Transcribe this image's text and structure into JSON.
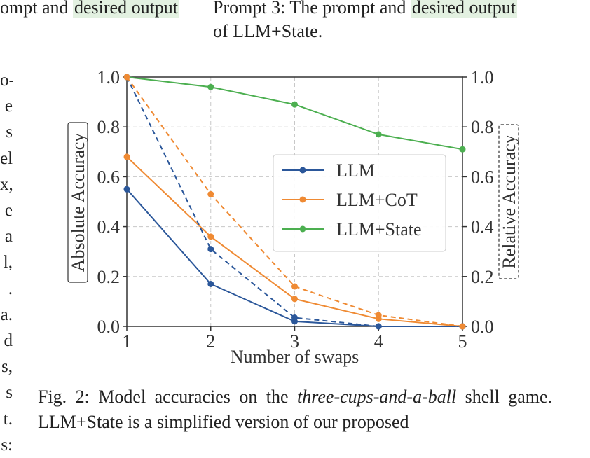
{
  "top_fragments": {
    "left_prefix": "ompt and ",
    "left_highlight": "desired output",
    "right_prefix": "Prompt 3: The prompt and ",
    "right_highlight": "desired output",
    "right_line2": "of LLM+State."
  },
  "left_column_fragments": [
    "o-",
    "e",
    "s",
    "el",
    "x,",
    "e",
    "a",
    "l,",
    ".",
    "a.",
    "d",
    "s,",
    "s",
    "t.",
    "s:"
  ],
  "chart_data": {
    "type": "line",
    "x": [
      1,
      2,
      3,
      4,
      5
    ],
    "xlabel": "Number of swaps",
    "ylabel_left": "Absolute Accuracy",
    "ylabel_right": "Relative Accuracy",
    "ylim": [
      0.0,
      1.0
    ],
    "x_ticks": [
      "1",
      "2",
      "3",
      "4",
      "5"
    ],
    "y_ticks": [
      "0.0",
      "0.2",
      "0.4",
      "0.6",
      "0.8",
      "1.0"
    ],
    "grid": true,
    "legend_position": "center-right",
    "series": [
      {
        "name": "LLM",
        "color": "#2b579a",
        "style": "solid",
        "axis": "absolute",
        "values": [
          0.55,
          0.17,
          0.02,
          0.0,
          0.0
        ]
      },
      {
        "name": "LLM+CoT",
        "color": "#ef8a33",
        "style": "solid",
        "axis": "absolute",
        "values": [
          0.68,
          0.36,
          0.11,
          0.03,
          0.0
        ]
      },
      {
        "name": "LLM+State",
        "color": "#4caf50",
        "style": "solid",
        "axis": "absolute",
        "values": [
          1.0,
          0.96,
          0.89,
          0.77,
          0.71
        ]
      },
      {
        "color": "#2b579a",
        "style": "dashed",
        "axis": "relative",
        "values": [
          1.0,
          0.31,
          0.035,
          0.0,
          0.0
        ]
      },
      {
        "color": "#ef8a33",
        "style": "dashed",
        "axis": "relative",
        "values": [
          1.0,
          0.53,
          0.16,
          0.045,
          0.0
        ]
      }
    ]
  },
  "caption": {
    "prefix": "Fig. 2: Model accuracies on the ",
    "italic": "three-cups-and-a-ball",
    "suffix": " shell game. LLM+State is a simplified version of our proposed"
  }
}
